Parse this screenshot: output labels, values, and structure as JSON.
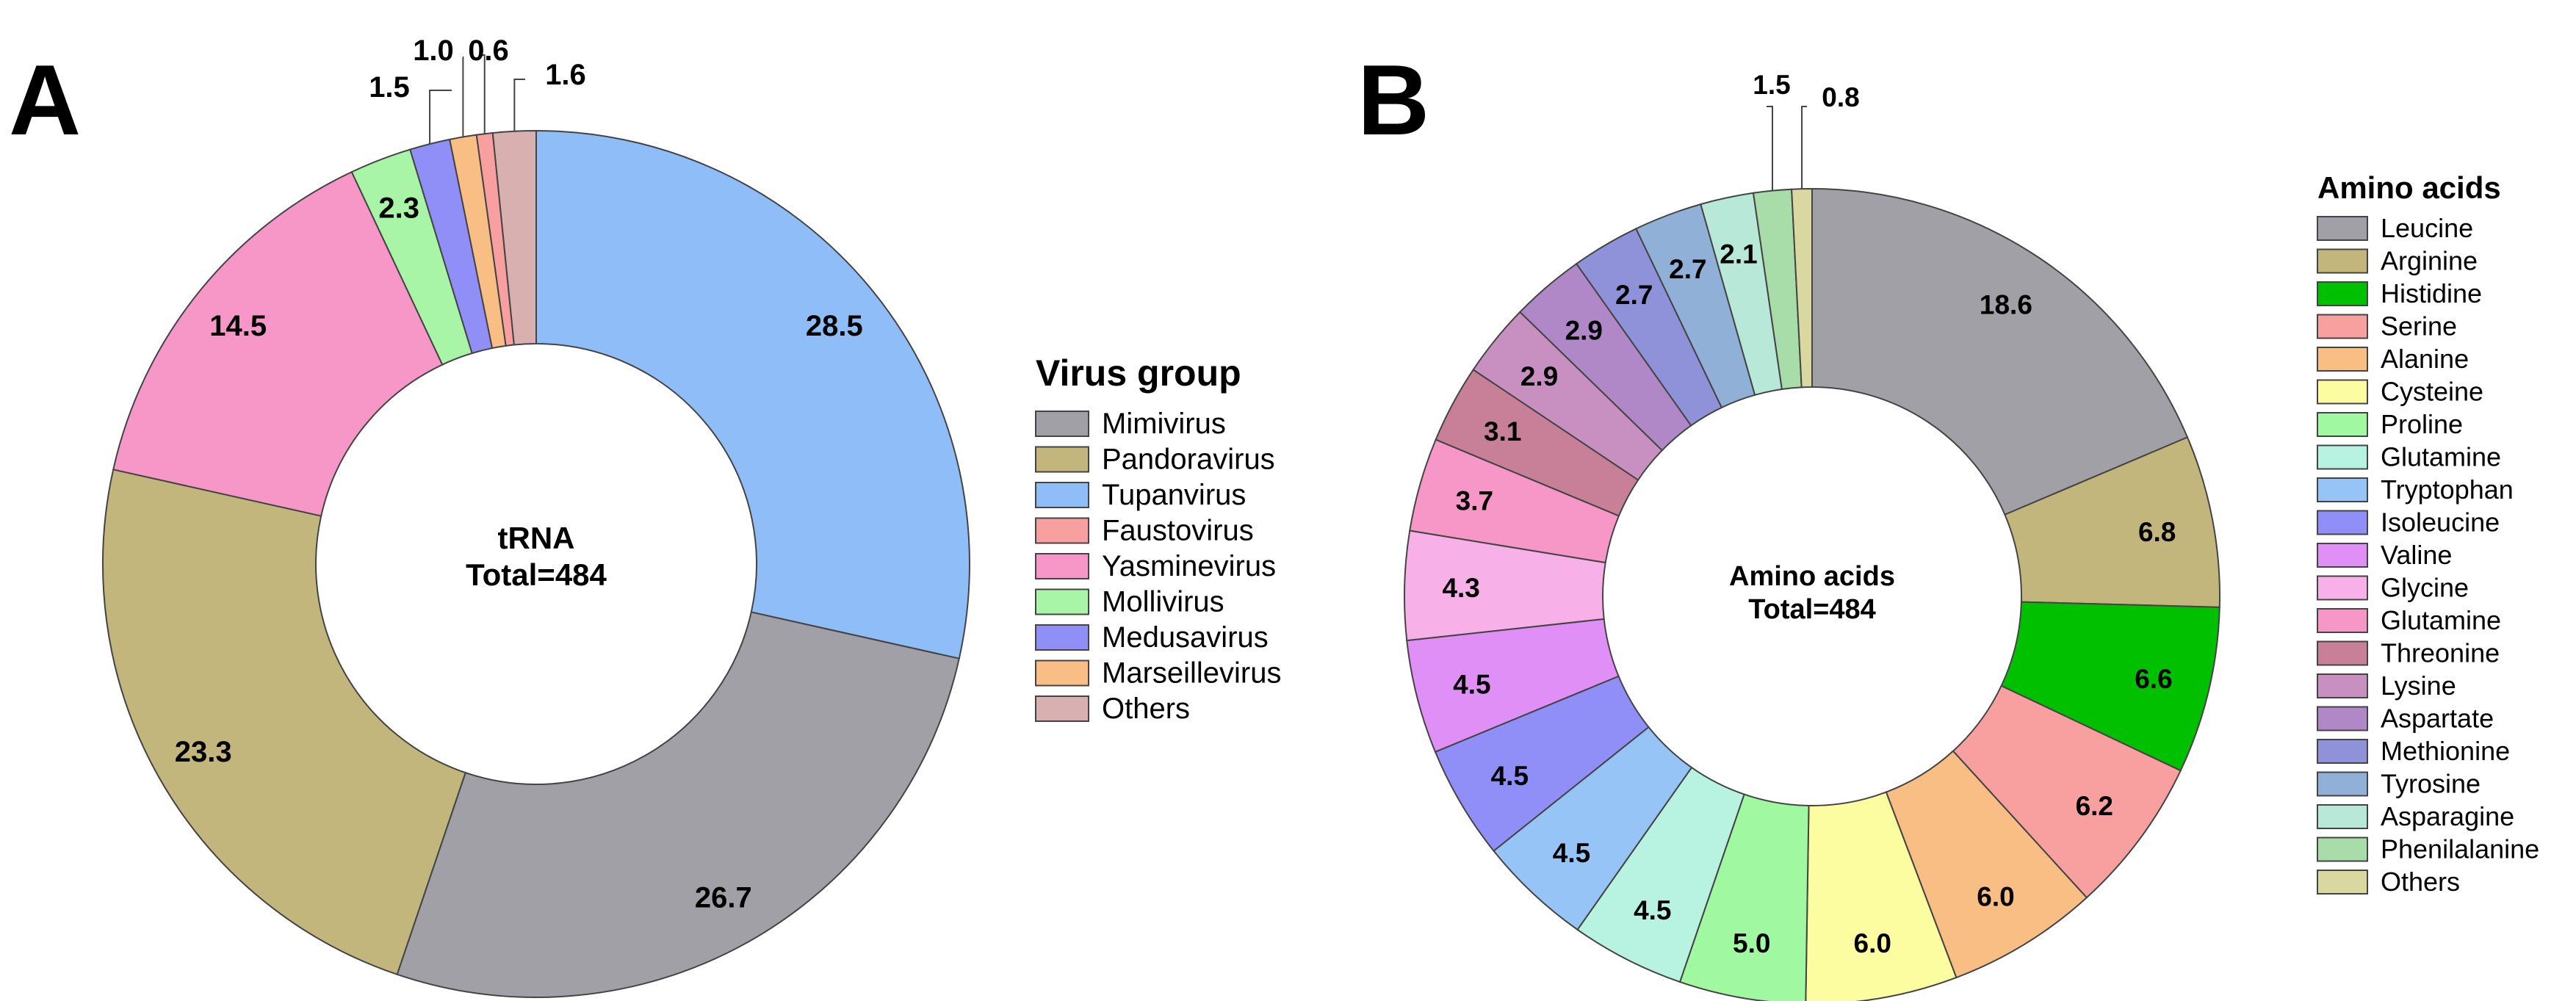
{
  "panels": [
    {
      "letter": "A",
      "center_line1": "tRNA",
      "center_line2": "Total=484",
      "legend_title": "Virus group",
      "chart_data": {
        "type": "pie",
        "title": "tRNA",
        "total_label": "Total=484",
        "slices": [
          {
            "name": "Tupanvirus",
            "value": 28.5,
            "label": "28.5",
            "color": "#8fbdf7"
          },
          {
            "name": "Mimivirus",
            "value": 26.7,
            "label": "26.7",
            "color": "#a0a0a6"
          },
          {
            "name": "Pandoravirus",
            "value": 23.3,
            "label": "23.3",
            "color": "#c3b67c"
          },
          {
            "name": "Yasminevirus",
            "value": 14.5,
            "label": "14.5",
            "color": "#f797c8"
          },
          {
            "name": "Mollivirus",
            "value": 2.3,
            "label": "2.3",
            "color": "#a8f5a8"
          },
          {
            "name": "Medusavirus",
            "value": 1.5,
            "label": "1.5",
            "color": "#8f8ff7"
          },
          {
            "name": "Marseillevirus",
            "value": 1.0,
            "label": "1.0",
            "color": "#f8be84"
          },
          {
            "name": "Faustovirus",
            "value": 0.6,
            "label": "0.6",
            "color": "#f8a0a0"
          },
          {
            "name": "Others",
            "value": 1.6,
            "label": "1.6",
            "color": "#d9b0b0"
          }
        ],
        "legend": [
          {
            "label": "Mimivirus",
            "color": "#a0a0a6"
          },
          {
            "label": "Pandoravirus",
            "color": "#c3b67c"
          },
          {
            "label": "Tupanvirus",
            "color": "#8fbdf7"
          },
          {
            "label": "Faustovirus",
            "color": "#f8a0a0"
          },
          {
            "label": "Yasminevirus",
            "color": "#f797c8"
          },
          {
            "label": "Mollivirus",
            "color": "#a8f5a8"
          },
          {
            "label": "Medusavirus",
            "color": "#8f8ff7"
          },
          {
            "label": "Marseillevirus",
            "color": "#f8be84"
          },
          {
            "label": "Others",
            "color": "#d9b0b0"
          }
        ]
      }
    },
    {
      "letter": "B",
      "center_line1": "Amino acids",
      "center_line2": "Total=484",
      "legend_title": "Amino acids",
      "chart_data": {
        "type": "pie",
        "title": "Amino acids",
        "total_label": "Total=484",
        "slices": [
          {
            "name": "Leucine",
            "value": 18.6,
            "label": "18.6",
            "color": "#a0a0a6"
          },
          {
            "name": "Arginine",
            "value": 6.8,
            "label": "6.8",
            "color": "#c3b67c"
          },
          {
            "name": "Histidine",
            "value": 6.6,
            "label": "6.6",
            "color": "#00c000"
          },
          {
            "name": "Serine",
            "value": 6.2,
            "label": "6.2",
            "color": "#f8a0a0"
          },
          {
            "name": "Alanine",
            "value": 6.0,
            "label": "6.0",
            "color": "#f8be84"
          },
          {
            "name": "Cysteine",
            "value": 6.0,
            "label": "6.0",
            "color": "#fcfca0"
          },
          {
            "name": "Proline",
            "value": 5.0,
            "label": "5.0",
            "color": "#a0f8a0"
          },
          {
            "name": "Glutamine",
            "value": 4.5,
            "label": "4.5",
            "color": "#b8f2e0"
          },
          {
            "name": "Tryptophan",
            "value": 4.5,
            "label": "4.5",
            "color": "#97c4f7"
          },
          {
            "name": "Isoleucine",
            "value": 4.5,
            "label": "4.5",
            "color": "#8f8ff7"
          },
          {
            "name": "Valine",
            "value": 4.5,
            "label": "4.5",
            "color": "#e08ff7"
          },
          {
            "name": "Glycine",
            "value": 4.3,
            "label": "4.3",
            "color": "#f7b0e8"
          },
          {
            "name": "Glutamine",
            "value": 3.7,
            "label": "3.7",
            "color": "#f797c8"
          },
          {
            "name": "Threonine",
            "value": 3.1,
            "label": "3.1",
            "color": "#c88098"
          },
          {
            "name": "Lysine",
            "value": 2.9,
            "label": "2.9",
            "color": "#c890c0"
          },
          {
            "name": "Aspartate",
            "value": 2.9,
            "label": "2.9",
            "color": "#b088c8"
          },
          {
            "name": "Methionine",
            "value": 2.7,
            "label": "2.7",
            "color": "#8f92d8"
          },
          {
            "name": "Tyrosine",
            "value": 2.7,
            "label": "2.7",
            "color": "#90b0d8"
          },
          {
            "name": "Asparagine",
            "value": 2.1,
            "label": "2.1",
            "color": "#b8e8d8"
          },
          {
            "name": "Phenilalanine",
            "value": 1.5,
            "label": "1.5",
            "color": "#a8dca8"
          },
          {
            "name": "Others",
            "value": 0.8,
            "label": "0.8",
            "color": "#d8d8a0"
          }
        ],
        "legend": [
          {
            "label": "Leucine",
            "color": "#a0a0a6"
          },
          {
            "label": "Arginine",
            "color": "#c3b67c"
          },
          {
            "label": "Histidine",
            "color": "#00c000"
          },
          {
            "label": "Serine",
            "color": "#f8a0a0"
          },
          {
            "label": "Alanine",
            "color": "#f8be84"
          },
          {
            "label": "Cysteine",
            "color": "#fcfca0"
          },
          {
            "label": "Proline",
            "color": "#a0f8a0"
          },
          {
            "label": "Glutamine",
            "color": "#b8f2e0"
          },
          {
            "label": "Tryptophan",
            "color": "#97c4f7"
          },
          {
            "label": "Isoleucine",
            "color": "#8f8ff7"
          },
          {
            "label": "Valine",
            "color": "#e08ff7"
          },
          {
            "label": "Glycine",
            "color": "#f7b0e8"
          },
          {
            "label": "Glutamine",
            "color": "#f797c8"
          },
          {
            "label": "Threonine",
            "color": "#c88098"
          },
          {
            "label": "Lysine",
            "color": "#c890c0"
          },
          {
            "label": "Aspartate",
            "color": "#b088c8"
          },
          {
            "label": "Methionine",
            "color": "#8f92d8"
          },
          {
            "label": "Tyrosine",
            "color": "#90b0d8"
          },
          {
            "label": "Asparagine",
            "color": "#b8e8d8"
          },
          {
            "label": "Phenilalanine",
            "color": "#a8dca8"
          },
          {
            "label": "Others",
            "color": "#d8d8a0"
          }
        ]
      }
    }
  ]
}
